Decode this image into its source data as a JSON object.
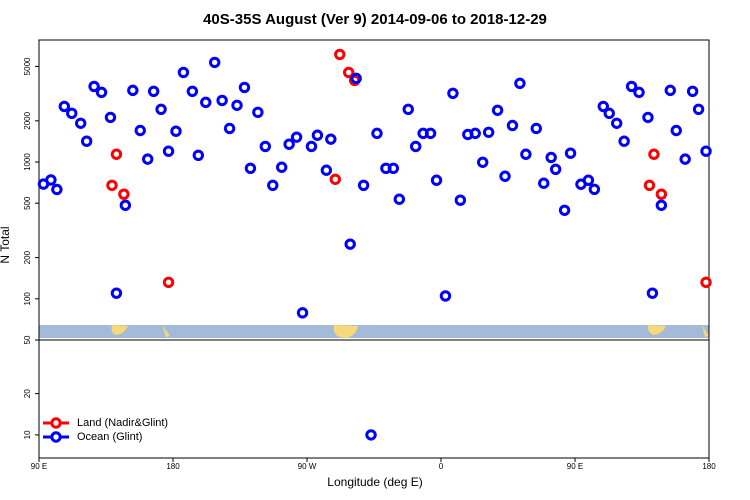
{
  "chart_data": {
    "type": "scatter",
    "title": "40S-35S August (Ver 9)   2014-09-06 to 2018-12-29",
    "xlabel": "Longitude (deg E)",
    "ylabel": "N Total",
    "xlim": [
      90,
      540
    ],
    "xticks": [
      {
        "value": 90,
        "label": "90 E"
      },
      {
        "value": 180,
        "label": "180"
      },
      {
        "value": 270,
        "label": "90 W"
      },
      {
        "value": 360,
        "label": "0"
      },
      {
        "value": 450,
        "label": "90 E"
      },
      {
        "value": 540,
        "label": "180"
      }
    ],
    "panels": [
      {
        "ylim": [
          50,
          7800
        ],
        "log": true,
        "yticks": [
          50,
          100,
          200,
          500,
          1000,
          2000,
          5000
        ]
      },
      {
        "ylim": [
          4.4,
          33
        ],
        "log": false,
        "yticks": [
          10,
          20
        ]
      }
    ],
    "legend": "lower left",
    "series": [
      {
        "name": "Land (Nadir&Glint)",
        "color": "#ff0000",
        "x": [
          139,
          142,
          147,
          177,
          289,
          292,
          298,
          302,
          500,
          503,
          508,
          538
        ],
        "values": [
          676,
          1140,
          582,
          132,
          748,
          6120,
          4520,
          3950,
          676,
          1140,
          582,
          132
        ]
      },
      {
        "name": "Ocean (Glint)",
        "color": "#0000ff",
        "x": [
          93,
          98,
          102,
          107,
          112,
          118,
          122,
          127,
          132,
          138,
          142,
          148,
          153,
          158,
          163,
          167,
          172,
          177,
          182,
          187,
          193,
          197,
          202,
          208,
          213,
          218,
          223,
          228,
          232,
          237,
          242,
          247,
          253,
          258,
          263,
          267,
          273,
          277,
          283,
          286,
          299,
          303,
          308,
          313,
          317,
          323,
          328,
          332,
          338,
          343,
          348,
          353,
          357,
          363,
          368,
          373,
          378,
          383,
          388,
          392,
          398,
          403,
          408,
          413,
          417,
          424,
          429,
          434,
          437,
          443,
          447,
          454,
          459,
          463,
          469,
          473,
          478,
          483,
          488,
          493,
          499,
          502,
          508,
          514,
          518,
          524,
          529,
          533,
          538
        ],
        "values": [
          690,
          740,
          630,
          2550,
          2270,
          1920,
          1420,
          3570,
          3230,
          2120,
          110,
          483,
          3340,
          1700,
          1050,
          3290,
          2430,
          1200,
          1680,
          4520,
          3290,
          1120,
          2730,
          5350,
          2820,
          1760,
          2600,
          3510,
          900,
          2310,
          1300,
          676,
          916,
          1350,
          1520,
          79,
          1300,
          1570,
          871,
          1470,
          251,
          4090,
          676,
          10,
          1620,
          900,
          900,
          535,
          2430,
          1300,
          1620,
          1620,
          736,
          105,
          3180,
          526,
          1590,
          1620,
          996,
          1650,
          2390,
          787,
          1850,
          3760,
          1140,
          1760,
          700,
          1080,
          885,
          444,
          1160,
          688,
          736,
          632,
          2550,
          2270,
          1920,
          1420,
          3570,
          3230,
          2120,
          110,
          483,
          3340,
          1700,
          1050,
          3290,
          2430,
          1200
        ]
      }
    ]
  }
}
